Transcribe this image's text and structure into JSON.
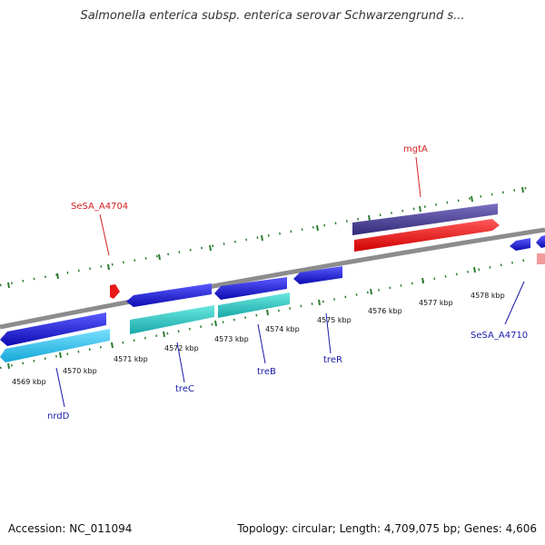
{
  "title": "Salmonella enterica subsp. enterica serovar Schwarzengrund s...",
  "footer": {
    "accession": "Accession: NC_011094",
    "topology": "Topology: circular; Length: 4,709,075 bp; Genes: 4,606"
  },
  "ticks": [
    {
      "label": "4569 kbp"
    },
    {
      "label": "4570 kbp"
    },
    {
      "label": "4571 kbp"
    },
    {
      "label": "4572 kbp"
    },
    {
      "label": "4573 kbp"
    },
    {
      "label": "4574 kbp"
    },
    {
      "label": "4575 kbp"
    },
    {
      "label": "4576 kbp"
    },
    {
      "label": "4577 kbp"
    },
    {
      "label": "4578 kbp"
    }
  ],
  "gene_labels": [
    {
      "name": "SeSA_A4704",
      "color": "#d42020"
    },
    {
      "name": "mgtA",
      "color": "#d42020"
    },
    {
      "name": "nrdD",
      "color": "#1a1aa8"
    },
    {
      "name": "treC",
      "color": "#1a1aa8"
    },
    {
      "name": "treB",
      "color": "#1a1aa8"
    },
    {
      "name": "treR",
      "color": "#1a1aa8"
    },
    {
      "name": "SeSA_A4710",
      "color": "#1a1aa8"
    }
  ],
  "colors": {
    "backbone": "#8c8c8c",
    "tick": "#2e7d32",
    "forward_cds": "#ee1111",
    "forward_cds_alt": "#4a3f8f",
    "reverse_cds": "#1a1adc",
    "reverse_rna": "#22bfe8",
    "reverse_teal": "#2ec8c8",
    "small_red": "#e81818",
    "pink": "#f29a9a"
  }
}
